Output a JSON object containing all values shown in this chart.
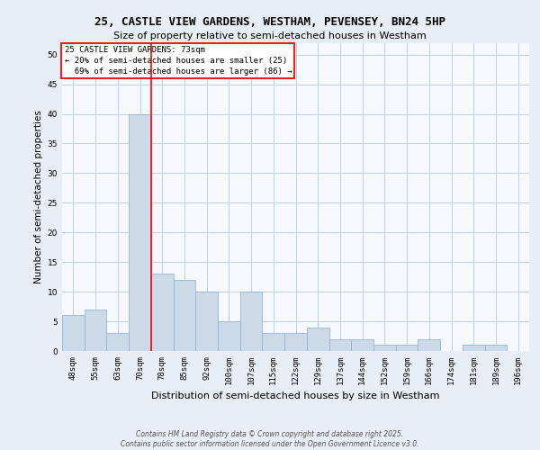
{
  "title_line1": "25, CASTLE VIEW GARDENS, WESTHAM, PEVENSEY, BN24 5HP",
  "title_line2": "Size of property relative to semi-detached houses in Westham",
  "xlabel": "Distribution of semi-detached houses by size in Westham",
  "ylabel": "Number of semi-detached properties",
  "footnote": "Contains HM Land Registry data © Crown copyright and database right 2025.\nContains public sector information licensed under the Open Government Licence v3.0.",
  "categories": [
    "48sqm",
    "55sqm",
    "63sqm",
    "70sqm",
    "78sqm",
    "85sqm",
    "92sqm",
    "100sqm",
    "107sqm",
    "115sqm",
    "122sqm",
    "129sqm",
    "137sqm",
    "144sqm",
    "152sqm",
    "159sqm",
    "166sqm",
    "174sqm",
    "181sqm",
    "189sqm",
    "196sqm"
  ],
  "values": [
    6,
    7,
    3,
    40,
    13,
    12,
    10,
    5,
    10,
    3,
    3,
    4,
    2,
    2,
    1,
    1,
    2,
    0,
    1,
    1,
    0
  ],
  "bar_color": "#ccd9e8",
  "bar_edgecolor": "#9ab4cc",
  "redline_x": 3.5,
  "property_name": "25 CASTLE VIEW GARDENS: 73sqm",
  "pct_smaller": "20% of semi-detached houses are smaller (25)",
  "pct_larger": "69% of semi-detached houses are larger (86)",
  "ylim": [
    0,
    52
  ],
  "yticks": [
    0,
    5,
    10,
    15,
    20,
    25,
    30,
    35,
    40,
    45,
    50
  ],
  "background_color": "#e8eef5",
  "plot_background": "#f5f8fc",
  "grid_color": "#c0cfe0",
  "title1_fontsize": 9,
  "title2_fontsize": 8,
  "xlabel_fontsize": 8,
  "ylabel_fontsize": 7.5,
  "tick_fontsize": 6.5,
  "annot_fontsize": 6.5,
  "footnote_fontsize": 5.5
}
